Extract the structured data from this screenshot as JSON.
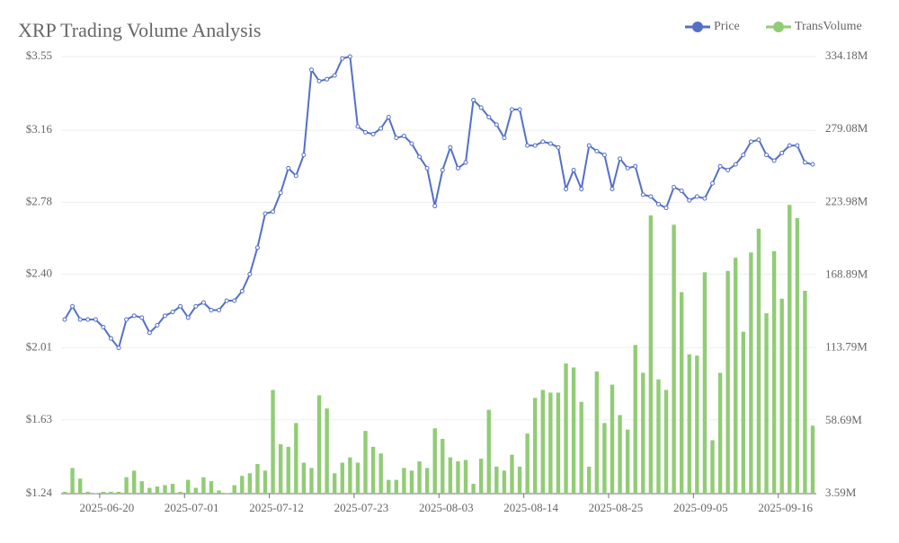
{
  "chart_data": {
    "type": "combo",
    "title": "XRP Trading Volume Analysis",
    "categories": [
      null,
      null,
      null,
      null,
      null,
      "2025-06-20",
      null,
      null,
      null,
      null,
      null,
      null,
      null,
      null,
      null,
      null,
      "2025-07-01",
      null,
      null,
      null,
      null,
      null,
      null,
      null,
      null,
      null,
      null,
      "2025-07-12",
      null,
      null,
      null,
      null,
      null,
      null,
      null,
      null,
      null,
      null,
      "2025-07-23",
      null,
      null,
      null,
      null,
      null,
      null,
      null,
      null,
      null,
      null,
      "2025-08-03",
      null,
      null,
      null,
      null,
      null,
      null,
      null,
      null,
      null,
      null,
      "2025-08-14",
      null,
      null,
      null,
      null,
      null,
      null,
      null,
      null,
      null,
      null,
      "2025-08-25",
      null,
      null,
      null,
      null,
      null,
      null,
      null,
      null,
      null,
      null,
      "2025-09-05",
      null,
      null,
      null,
      null,
      null,
      null,
      null,
      null,
      null,
      null,
      "2025-09-16",
      null,
      null,
      null,
      null
    ],
    "series": [
      {
        "name": "Price",
        "type": "line",
        "color": "#5470c6",
        "axis": "y",
        "values": [
          2.16,
          2.23,
          2.16,
          2.16,
          2.16,
          2.12,
          2.06,
          2.01,
          2.16,
          2.18,
          2.17,
          2.09,
          2.13,
          2.18,
          2.2,
          2.23,
          2.17,
          2.23,
          2.25,
          2.21,
          2.21,
          2.26,
          2.26,
          2.31,
          2.4,
          2.54,
          2.72,
          2.73,
          2.83,
          2.96,
          2.92,
          3.03,
          3.48,
          3.42,
          3.43,
          3.45,
          3.54,
          3.55,
          3.18,
          3.15,
          3.14,
          3.17,
          3.23,
          3.12,
          3.13,
          3.09,
          3.02,
          2.96,
          2.76,
          2.95,
          3.07,
          2.96,
          2.99,
          3.32,
          3.28,
          3.23,
          3.19,
          3.12,
          3.27,
          3.27,
          3.08,
          3.08,
          3.1,
          3.09,
          3.07,
          2.85,
          2.95,
          2.85,
          3.08,
          3.05,
          3.03,
          2.85,
          3.01,
          2.96,
          2.97,
          2.82,
          2.81,
          2.77,
          2.75,
          2.86,
          2.84,
          2.79,
          2.81,
          2.8,
          2.88,
          2.97,
          2.95,
          2.98,
          3.03,
          3.1,
          3.11,
          3.03,
          3.0,
          3.04,
          3.08,
          3.08,
          2.99,
          2.98
        ]
      },
      {
        "name": "TransVolume",
        "type": "bar",
        "color": "#91cc75",
        "axis": "y2",
        "values": [
          5,
          23,
          15,
          5,
          4,
          5,
          5,
          5,
          16,
          21,
          13,
          8,
          9,
          10,
          11,
          5,
          14,
          8,
          16,
          13,
          6,
          4,
          10,
          17,
          19,
          26,
          21,
          82,
          41,
          39,
          57,
          27,
          23,
          78,
          68,
          19,
          27,
          31,
          27,
          51,
          39,
          34,
          14,
          14,
          23,
          21,
          28,
          23,
          53,
          45,
          31,
          28,
          29,
          11,
          30,
          67,
          24,
          21,
          33,
          24,
          49,
          76,
          82,
          80,
          80,
          102,
          99,
          73,
          24,
          96,
          57,
          86,
          63,
          52,
          116,
          95,
          214,
          90,
          82,
          207,
          156,
          109,
          108,
          171,
          44,
          95,
          172,
          182,
          126,
          186,
          204,
          140,
          187,
          151,
          222,
          212,
          157,
          55
        ]
      }
    ],
    "ylim": [
      1.24,
      3.55
    ],
    "yticks": [
      {
        "value": 1.24,
        "label": "$1.24"
      },
      {
        "value": 1.63,
        "label": "$1.63"
      },
      {
        "value": 2.01,
        "label": "$2.01"
      },
      {
        "value": 2.4,
        "label": "$2.40"
      },
      {
        "value": 2.78,
        "label": "$2.78"
      },
      {
        "value": 3.16,
        "label": "$3.16"
      },
      {
        "value": 3.55,
        "label": "$3.55"
      }
    ],
    "y2lim": [
      3.59,
      334.18
    ],
    "y2ticks": [
      {
        "value": 3.59,
        "label": "3.59M"
      },
      {
        "value": 58.69,
        "label": "58.69M"
      },
      {
        "value": 113.79,
        "label": "113.79M"
      },
      {
        "value": 168.89,
        "label": "168.89M"
      },
      {
        "value": 223.98,
        "label": "223.98M"
      },
      {
        "value": 279.08,
        "label": "279.08M"
      },
      {
        "value": 334.18,
        "label": "334.18M"
      }
    ],
    "grid": true,
    "legend": "top-right"
  }
}
